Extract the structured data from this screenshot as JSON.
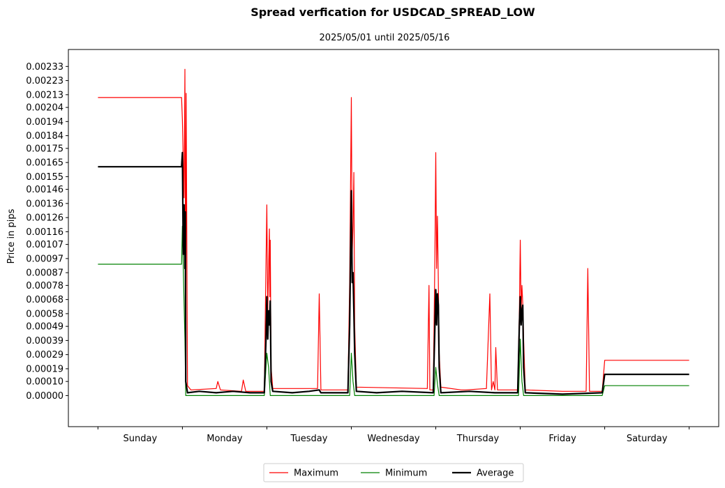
{
  "chart_data": {
    "type": "line",
    "title": "Spread verfication for USDCAD_SPREAD_LOW",
    "subtitle": "2025/05/01 until 2025/05/16",
    "xlabel": "",
    "ylabel": "Price in pips",
    "ylim": [
      -0.00022,
      0.00245
    ],
    "xlim": [
      -0.35,
      7.35
    ],
    "grid": false,
    "legend_position": "bottom-center",
    "categories": [
      "Sunday",
      "Monday",
      "Tuesday",
      "Wednesday",
      "Thursday",
      "Friday",
      "Saturday"
    ],
    "yticks": [
      "0.00000",
      "0.00010",
      "0.00019",
      "0.00029",
      "0.00039",
      "0.00049",
      "0.00058",
      "0.00068",
      "0.00078",
      "0.00087",
      "0.00097",
      "0.00107",
      "0.00116",
      "0.00126",
      "0.00136",
      "0.00146",
      "0.00155",
      "0.00165",
      "0.00175",
      "0.00184",
      "0.00194",
      "0.00204",
      "0.00213",
      "0.00223",
      "0.00233"
    ],
    "series": [
      {
        "name": "Maximum",
        "color": "#ff0000",
        "width": 1.2,
        "points": [
          [
            0,
            0.00211
          ],
          [
            0.99,
            0.00211
          ],
          [
            1.0,
            0.00195
          ],
          [
            1.02,
            0.0014
          ],
          [
            1.03,
            0.00231
          ],
          [
            1.04,
            0.0004
          ],
          [
            1.045,
            0.00214
          ],
          [
            1.06,
            7e-05
          ],
          [
            1.1,
            4e-05
          ],
          [
            1.4,
            5e-05
          ],
          [
            1.42,
            0.0001
          ],
          [
            1.45,
            4e-05
          ],
          [
            1.7,
            3e-05
          ],
          [
            1.72,
            0.00011
          ],
          [
            1.75,
            3e-05
          ],
          [
            1.97,
            3e-05
          ],
          [
            1.98,
            0.0005
          ],
          [
            2.0,
            0.00135
          ],
          [
            2.01,
            0.0006
          ],
          [
            2.02,
            0.00088
          ],
          [
            2.03,
            0.00118
          ],
          [
            2.035,
            0.0007
          ],
          [
            2.04,
            0.0011
          ],
          [
            2.05,
            0.0002
          ],
          [
            2.07,
            5e-05
          ],
          [
            2.6,
            5e-05
          ],
          [
            2.62,
            0.00072
          ],
          [
            2.64,
            4e-05
          ],
          [
            2.96,
            4e-05
          ],
          [
            2.98,
            0.0008
          ],
          [
            3.0,
            0.00211
          ],
          [
            3.01,
            0.001
          ],
          [
            3.02,
            0.0012
          ],
          [
            3.03,
            0.00158
          ],
          [
            3.04,
            0.0005
          ],
          [
            3.06,
            6e-05
          ],
          [
            3.9,
            5e-05
          ],
          [
            3.92,
            0.00078
          ],
          [
            3.93,
            4e-05
          ],
          [
            3.97,
            4e-05
          ],
          [
            3.99,
            0.001
          ],
          [
            4.0,
            0.00172
          ],
          [
            4.01,
            0.0009
          ],
          [
            4.02,
            0.00127
          ],
          [
            4.03,
            0.0008
          ],
          [
            4.04,
            0.0003
          ],
          [
            4.06,
            6e-05
          ],
          [
            4.3,
            4e-05
          ],
          [
            4.35,
            4e-05
          ],
          [
            4.6,
            5e-05
          ],
          [
            4.64,
            0.00072
          ],
          [
            4.66,
            4e-05
          ],
          [
            4.68,
            0.0001
          ],
          [
            4.7,
            4e-05
          ],
          [
            4.71,
            0.00034
          ],
          [
            4.73,
            4e-05
          ],
          [
            4.97,
            4e-05
          ],
          [
            4.99,
            0.0006
          ],
          [
            5.0,
            0.0011
          ],
          [
            5.01,
            0.0006
          ],
          [
            5.02,
            0.00078
          ],
          [
            5.03,
            0.00065
          ],
          [
            5.04,
            0.0004
          ],
          [
            5.06,
            4e-05
          ],
          [
            5.5,
            3e-05
          ],
          [
            5.78,
            3e-05
          ],
          [
            5.8,
            0.0009
          ],
          [
            5.82,
            3e-05
          ],
          [
            5.97,
            3e-05
          ],
          [
            6.0,
            0.00025
          ],
          [
            7.0,
            0.00025
          ]
        ]
      },
      {
        "name": "Minimum",
        "color": "#008000",
        "width": 1.2,
        "points": [
          [
            0,
            0.00093
          ],
          [
            0.99,
            0.00093
          ],
          [
            1.0,
            0.0012
          ],
          [
            1.02,
            0.00065
          ],
          [
            1.03,
            0.0004
          ],
          [
            1.04,
            0.0
          ],
          [
            1.97,
            0.0
          ],
          [
            2.0,
            0.0003
          ],
          [
            2.02,
            0.0002
          ],
          [
            2.04,
            0.0
          ],
          [
            2.98,
            0.0
          ],
          [
            3.0,
            0.0003
          ],
          [
            3.02,
            0.0001
          ],
          [
            3.04,
            0.0
          ],
          [
            3.98,
            0.0
          ],
          [
            4.0,
            0.0002
          ],
          [
            4.02,
            8e-05
          ],
          [
            4.04,
            0.0
          ],
          [
            4.98,
            0.0
          ],
          [
            5.0,
            0.0004
          ],
          [
            5.02,
            0.0001
          ],
          [
            5.04,
            0.0
          ],
          [
            5.97,
            0.0
          ],
          [
            6.0,
            7e-05
          ],
          [
            7.0,
            7e-05
          ]
        ]
      },
      {
        "name": "Average",
        "color": "#000000",
        "width": 2.2,
        "points": [
          [
            0,
            0.00162
          ],
          [
            0.99,
            0.00162
          ],
          [
            1.0,
            0.00172
          ],
          [
            1.01,
            0.001
          ],
          [
            1.02,
            0.00135
          ],
          [
            1.03,
            0.0009
          ],
          [
            1.035,
            0.0013
          ],
          [
            1.04,
            0.0001
          ],
          [
            1.06,
            2e-05
          ],
          [
            1.2,
            3e-05
          ],
          [
            1.4,
            2e-05
          ],
          [
            1.6,
            3e-05
          ],
          [
            1.8,
            2e-05
          ],
          [
            1.97,
            2e-05
          ],
          [
            1.99,
            0.0004
          ],
          [
            2.0,
            0.0007
          ],
          [
            2.01,
            0.0004
          ],
          [
            2.02,
            0.0006
          ],
          [
            2.03,
            0.0005
          ],
          [
            2.04,
            0.00067
          ],
          [
            2.05,
            0.0001
          ],
          [
            2.07,
            3e-05
          ],
          [
            2.3,
            2e-05
          ],
          [
            2.5,
            3e-05
          ],
          [
            2.62,
            4e-05
          ],
          [
            2.64,
            2e-05
          ],
          [
            2.96,
            2e-05
          ],
          [
            2.98,
            0.0005
          ],
          [
            3.0,
            0.00145
          ],
          [
            3.01,
            0.0008
          ],
          [
            3.02,
            0.00087
          ],
          [
            3.03,
            0.0006
          ],
          [
            3.04,
            0.0003
          ],
          [
            3.06,
            3e-05
          ],
          [
            3.3,
            2e-05
          ],
          [
            3.6,
            3e-05
          ],
          [
            3.97,
            2e-05
          ],
          [
            3.99,
            0.0005
          ],
          [
            4.0,
            0.00075
          ],
          [
            4.01,
            0.0005
          ],
          [
            4.02,
            0.00072
          ],
          [
            4.03,
            0.00064
          ],
          [
            4.04,
            0.0002
          ],
          [
            4.06,
            2e-05
          ],
          [
            4.4,
            3e-05
          ],
          [
            4.7,
            2e-05
          ],
          [
            4.97,
            2e-05
          ],
          [
            4.99,
            0.0005
          ],
          [
            5.0,
            0.0007
          ],
          [
            5.01,
            0.0005
          ],
          [
            5.02,
            0.0006
          ],
          [
            5.03,
            0.00064
          ],
          [
            5.04,
            0.0002
          ],
          [
            5.06,
            2e-05
          ],
          [
            5.5,
            1e-05
          ],
          [
            5.97,
            2e-05
          ],
          [
            6.0,
            0.00015
          ],
          [
            7.0,
            0.00015
          ]
        ]
      }
    ]
  }
}
